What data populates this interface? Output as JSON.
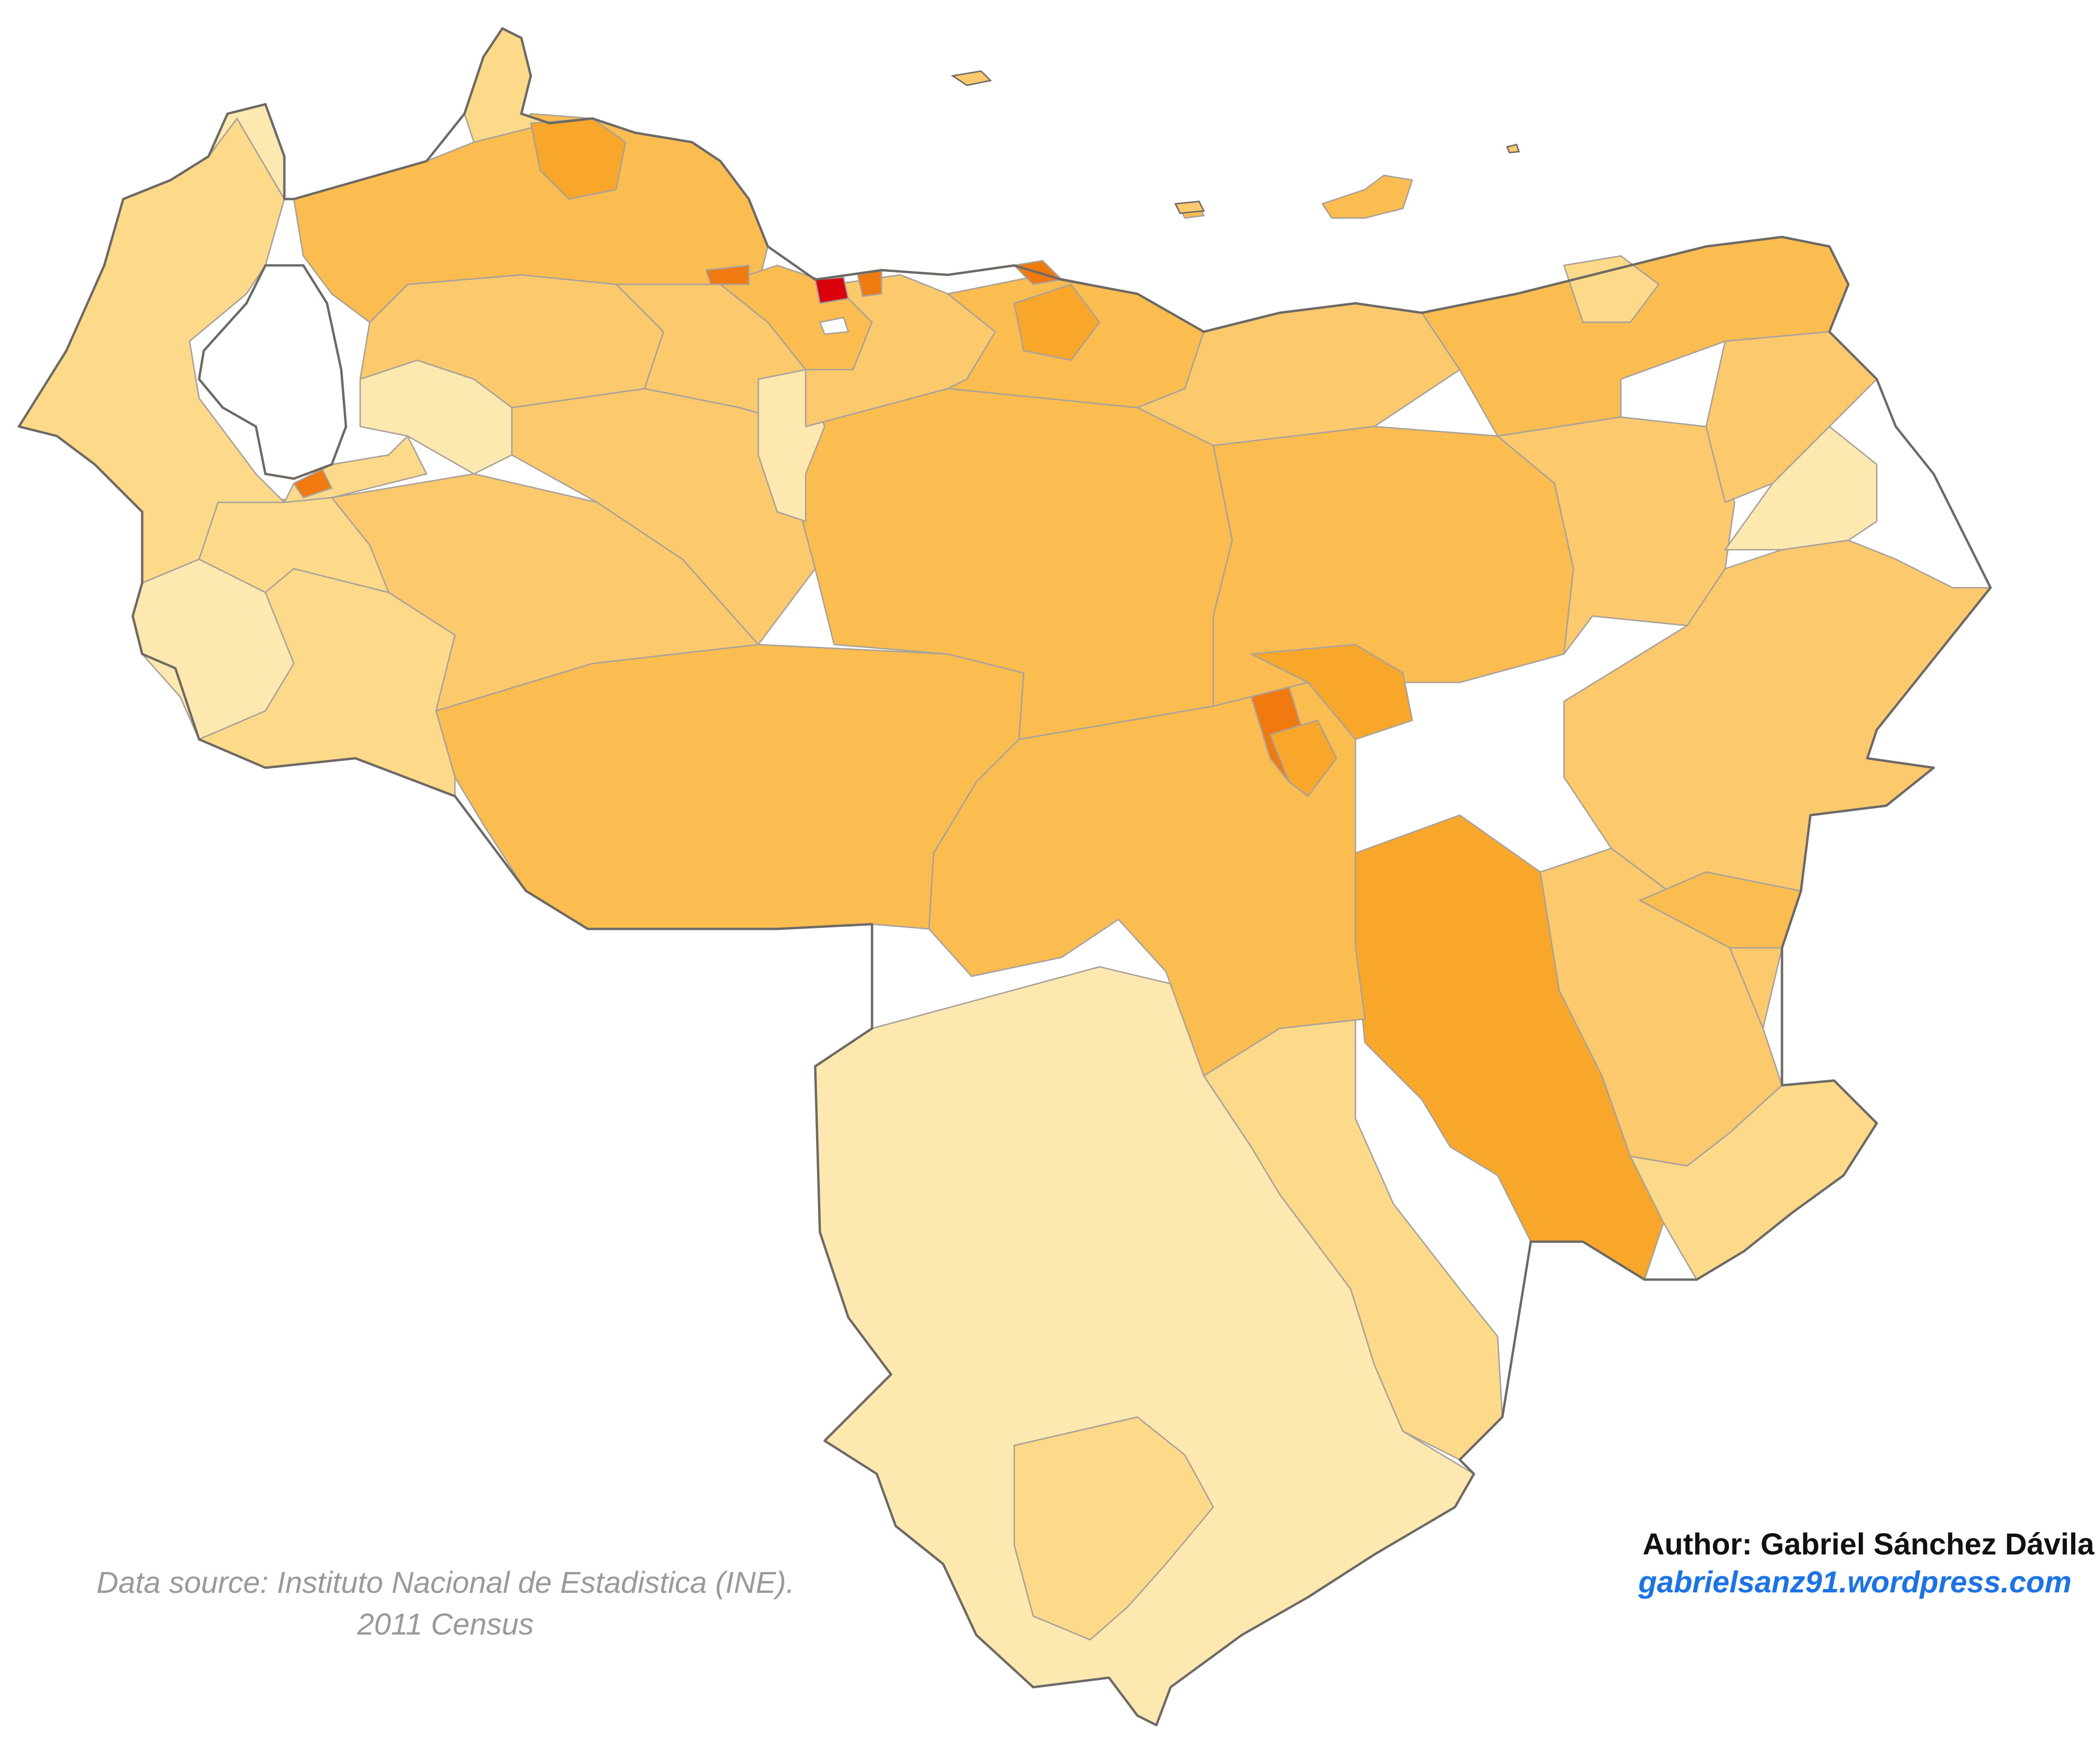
{
  "map": {
    "country": "Venezuela",
    "colors": {
      "very_low": "#fde9b0",
      "low": "#fdd98a",
      "medium": "#fcca6c",
      "medium_high": "#fbbd4f",
      "high": "#f9a72a",
      "very_high": "#f07a10",
      "extreme": "#d9000b",
      "no_data": "#ffffff",
      "border": "#a9a29a",
      "outline": "#6d6a66"
    }
  },
  "credits": {
    "source_line1": "Data source: Instituto Nacional de Estadistica (INE).",
    "source_line2": "2011 Census",
    "author": "Author: Gabriel Sánchez Dávila",
    "blog": "gabrielsanz91.wordpress.com"
  }
}
